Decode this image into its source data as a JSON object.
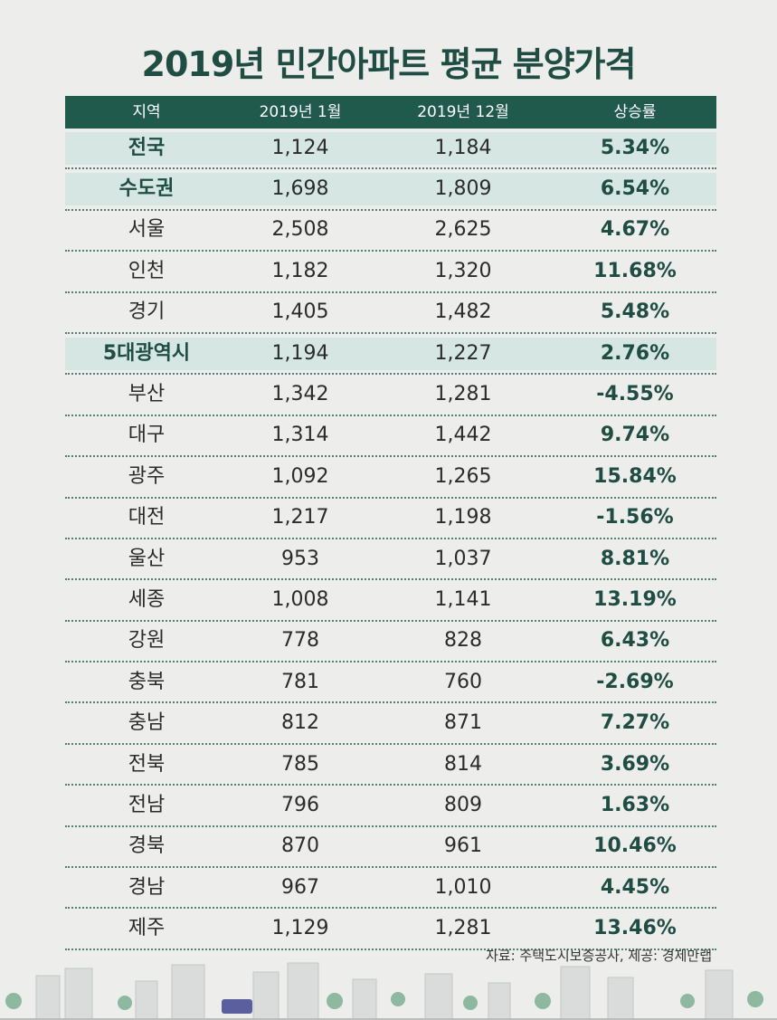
{
  "title": "2019년 민간아파트 평균 분양가격",
  "source": "자료: 주택도시보증공사, 제공: 경제만랩",
  "colors": {
    "header_bg": "#1f5a4d",
    "highlight_bg": "#d6e7e3",
    "accent_text": "#1f4d44",
    "background": "#ededec"
  },
  "chart_data": {
    "type": "table",
    "title": "2019년 민간아파트 평균 분양가격",
    "columns": [
      "지역",
      "2019년 1월",
      "2019년 12월",
      "상승률"
    ],
    "rows": [
      {
        "region": "전국",
        "jan": "1,124",
        "dec": "1,184",
        "rate": "5.34%",
        "highlight": true
      },
      {
        "region": "수도권",
        "jan": "1,698",
        "dec": "1,809",
        "rate": "6.54%",
        "highlight": true
      },
      {
        "region": "서울",
        "jan": "2,508",
        "dec": "2,625",
        "rate": "4.67%",
        "highlight": false
      },
      {
        "region": "인천",
        "jan": "1,182",
        "dec": "1,320",
        "rate": "11.68%",
        "highlight": false
      },
      {
        "region": "경기",
        "jan": "1,405",
        "dec": "1,482",
        "rate": "5.48%",
        "highlight": false
      },
      {
        "region": "5대광역시",
        "jan": "1,194",
        "dec": "1,227",
        "rate": "2.76%",
        "highlight": true
      },
      {
        "region": "부산",
        "jan": "1,342",
        "dec": "1,281",
        "rate": "-4.55%",
        "highlight": false
      },
      {
        "region": "대구",
        "jan": "1,314",
        "dec": "1,442",
        "rate": "9.74%",
        "highlight": false
      },
      {
        "region": "광주",
        "jan": "1,092",
        "dec": "1,265",
        "rate": "15.84%",
        "highlight": false
      },
      {
        "region": "대전",
        "jan": "1,217",
        "dec": "1,198",
        "rate": "-1.56%",
        "highlight": false
      },
      {
        "region": "울산",
        "jan": "953",
        "dec": "1,037",
        "rate": "8.81%",
        "highlight": false
      },
      {
        "region": "세종",
        "jan": "1,008",
        "dec": "1,141",
        "rate": "13.19%",
        "highlight": false
      },
      {
        "region": "강원",
        "jan": "778",
        "dec": "828",
        "rate": "6.43%",
        "highlight": false
      },
      {
        "region": "충북",
        "jan": "781",
        "dec": "760",
        "rate": "-2.69%",
        "highlight": false
      },
      {
        "region": "충남",
        "jan": "812",
        "dec": "871",
        "rate": "7.27%",
        "highlight": false
      },
      {
        "region": "전북",
        "jan": "785",
        "dec": "814",
        "rate": "3.69%",
        "highlight": false
      },
      {
        "region": "전남",
        "jan": "796",
        "dec": "809",
        "rate": "1.63%",
        "highlight": false
      },
      {
        "region": "경북",
        "jan": "870",
        "dec": "961",
        "rate": "10.46%",
        "highlight": false
      },
      {
        "region": "경남",
        "jan": "967",
        "dec": "1,010",
        "rate": "4.45%",
        "highlight": false
      },
      {
        "region": "제주",
        "jan": "1,129",
        "dec": "1,281",
        "rate": "13.46%",
        "highlight": false
      }
    ]
  }
}
